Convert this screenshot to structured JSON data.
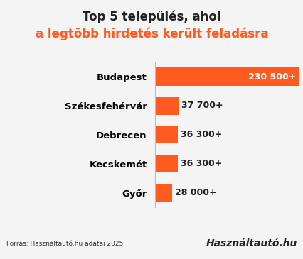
{
  "chart_data": {
    "type": "bar",
    "orientation": "horizontal",
    "title": "Top 5 település, ahol",
    "subtitle": "a legtöbb hirdetés került feladásra",
    "categories": [
      "Budapest",
      "Székesfehérvár",
      "Debrecen",
      "Kecskemét",
      "Győr"
    ],
    "values": [
      230500,
      37700,
      36300,
      36300,
      28000
    ],
    "value_labels": [
      "230 500+",
      "37 700+",
      "36 300+",
      "36 300+",
      "28 000+"
    ],
    "data_labels": true,
    "color": "#ff5a1f",
    "xlim": [
      0,
      230500
    ],
    "tick_labels": "y",
    "grid": false,
    "source": "Forrás: Használtautó.hu adatai 2025",
    "logo": "Használtautó.hu"
  }
}
